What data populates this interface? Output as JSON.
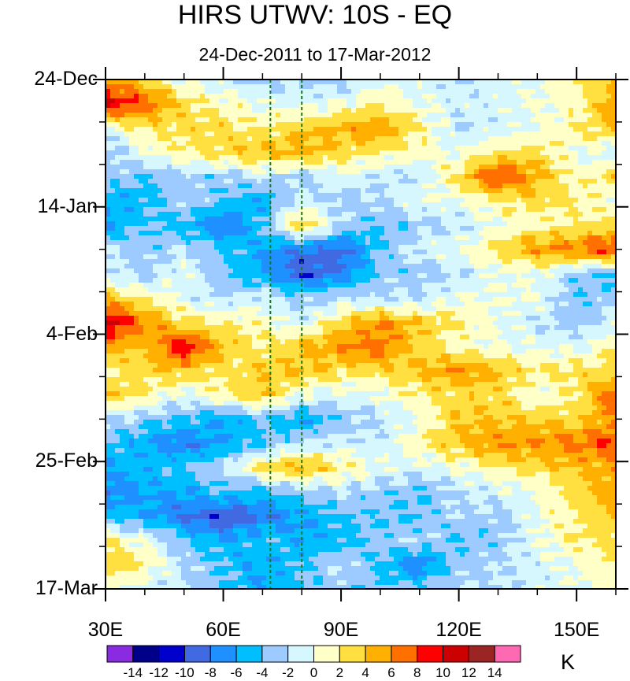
{
  "chart_data": {
    "type": "heatmap",
    "title": "HIRS UTWV: 10S - EQ",
    "subtitle": "24-Dec-2011 to 17-Mar-2012",
    "x_axis": {
      "range": [
        30,
        160
      ],
      "ticks": [
        30,
        60,
        90,
        120,
        150
      ],
      "tick_labels": [
        "30E",
        "60E",
        "90E",
        "120E",
        "150E"
      ]
    },
    "y_axis": {
      "range_days": [
        0,
        84
      ],
      "ticks": [
        0,
        21,
        42,
        63,
        84
      ],
      "tick_labels": [
        "24-Dec",
        "14-Jan",
        "4-Feb",
        "25-Feb",
        "17-Mar"
      ]
    },
    "reference_lines_lon": [
      72,
      80
    ],
    "colorbar": {
      "units": "K",
      "levels": [
        -14,
        -12,
        -10,
        -8,
        -6,
        -4,
        -2,
        0,
        2,
        4,
        6,
        8,
        10,
        12,
        14
      ],
      "level_labels": [
        "-14",
        "-12",
        "-10",
        "-8",
        "-6",
        "-4",
        "-2",
        "0",
        "2",
        "4",
        "6",
        "8",
        "10",
        "12",
        "14"
      ],
      "colors": [
        "#8a2be2",
        "#00008b",
        "#0000cd",
        "#4169e1",
        "#1e90ff",
        "#00bfff",
        "#9ecbff",
        "#d7f7ff",
        "#ffffc8",
        "#ffe040",
        "#ffb000",
        "#ff7000",
        "#ff0000",
        "#cc0000",
        "#9b2424",
        "#ff69b4"
      ]
    },
    "anomaly_field": {
      "description_note": "approximate UTWV anomalies (K) read from the shading; rows = days from 24-Dec, cols = longitude",
      "lon": [
        30,
        40,
        50,
        60,
        70,
        80,
        90,
        100,
        110,
        120,
        130,
        140,
        150,
        160
      ],
      "rows": [
        {
          "day": 0,
          "values": [
            6,
            3,
            0,
            -1,
            -3,
            -2,
            -3,
            -1,
            -1,
            -2,
            -1,
            0,
            2,
            4
          ]
        },
        {
          "day": 4,
          "values": [
            10,
            8,
            3,
            1,
            0,
            -1,
            0,
            2,
            0,
            -1,
            -1,
            0,
            1,
            6
          ]
        },
        {
          "day": 8,
          "values": [
            0,
            2,
            3,
            3,
            2,
            4,
            5,
            6,
            2,
            -2,
            -1,
            0,
            2,
            4
          ]
        },
        {
          "day": 12,
          "values": [
            -4,
            0,
            2,
            3,
            4,
            5,
            3,
            2,
            1,
            0,
            2,
            3,
            0,
            -1
          ]
        },
        {
          "day": 16,
          "values": [
            -2,
            -4,
            -3,
            -3,
            -1,
            -3,
            0,
            -2,
            -2,
            3,
            9,
            5,
            1,
            3
          ]
        },
        {
          "day": 20,
          "values": [
            -6,
            -5,
            -2,
            -4,
            -6,
            -1,
            -3,
            -2,
            0,
            0,
            2,
            3,
            2,
            0
          ]
        },
        {
          "day": 24,
          "values": [
            -6,
            -4,
            -5,
            -8,
            -4,
            4,
            -2,
            -4,
            -3,
            -2,
            0,
            1,
            2,
            3
          ]
        },
        {
          "day": 28,
          "values": [
            -2,
            -3,
            -2,
            -4,
            -6,
            -8,
            -9,
            -4,
            -1,
            0,
            3,
            6,
            7,
            9
          ]
        },
        {
          "day": 32,
          "values": [
            -1,
            -3,
            0,
            -4,
            -6,
            -10,
            -8,
            -3,
            -3,
            -2,
            0,
            0,
            -3,
            -5
          ]
        },
        {
          "day": 36,
          "values": [
            4,
            2,
            -1,
            -2,
            -1,
            -3,
            -2,
            -2,
            -2,
            0,
            0,
            0,
            -4,
            -2
          ]
        },
        {
          "day": 40,
          "values": [
            12,
            6,
            3,
            2,
            1,
            -1,
            3,
            6,
            4,
            2,
            0,
            -2,
            -3,
            -1
          ]
        },
        {
          "day": 44,
          "values": [
            5,
            4,
            10,
            4,
            2,
            4,
            6,
            7,
            3,
            1,
            0,
            0,
            -1,
            2
          ]
        },
        {
          "day": 48,
          "values": [
            2,
            3,
            4,
            2,
            4,
            4,
            3,
            3,
            4,
            6,
            4,
            2,
            3,
            3
          ]
        },
        {
          "day": 52,
          "values": [
            4,
            2,
            -1,
            2,
            4,
            0,
            -1,
            0,
            2,
            3,
            3,
            0,
            2,
            8
          ]
        },
        {
          "day": 56,
          "values": [
            -2,
            -3,
            -4,
            -6,
            -4,
            -6,
            -3,
            -2,
            0,
            4,
            4,
            4,
            3,
            6
          ]
        },
        {
          "day": 60,
          "values": [
            -4,
            -6,
            -8,
            -6,
            -4,
            -2,
            -1,
            -2,
            2,
            4,
            6,
            6,
            7,
            8
          ]
        },
        {
          "day": 64,
          "values": [
            -6,
            -5,
            -4,
            -2,
            3,
            5,
            2,
            0,
            -1,
            0,
            2,
            3,
            4,
            5
          ]
        },
        {
          "day": 68,
          "values": [
            -8,
            -6,
            -6,
            -4,
            -5,
            -3,
            -2,
            -3,
            -4,
            -2,
            -1,
            0,
            3,
            6
          ]
        },
        {
          "day": 72,
          "values": [
            -4,
            -6,
            -8,
            -10,
            -8,
            -6,
            -4,
            -4,
            -4,
            -2,
            -3,
            0,
            2,
            4
          ]
        },
        {
          "day": 76,
          "values": [
            2,
            0,
            -4,
            -6,
            -4,
            -6,
            -5,
            -3,
            -2,
            -4,
            -3,
            0,
            2,
            3
          ]
        },
        {
          "day": 80,
          "values": [
            4,
            2,
            -2,
            -4,
            -6,
            -4,
            -2,
            -4,
            -8,
            -3,
            -2,
            -1,
            0,
            2
          ]
        },
        {
          "day": 84,
          "values": [
            0,
            -1,
            -2,
            -4,
            -6,
            -4,
            -3,
            -4,
            -3,
            -2,
            -2,
            -1,
            0,
            1
          ]
        }
      ]
    }
  }
}
